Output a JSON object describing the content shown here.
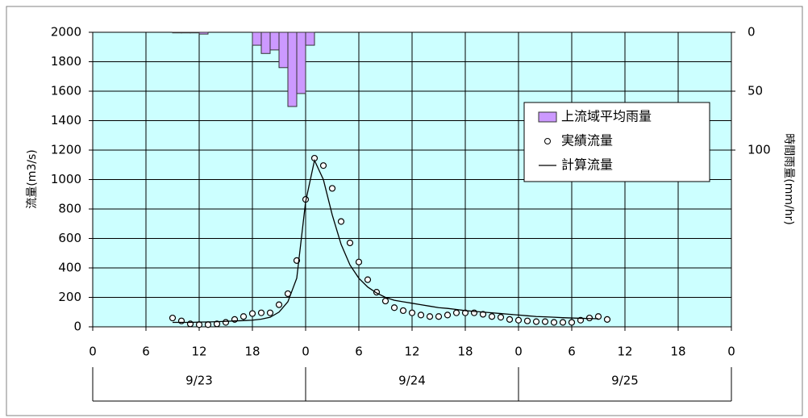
{
  "chart_data": {
    "type": "combo",
    "y_label": "流量(m3/s)",
    "y2_label": "時間雨量(mm/hr)",
    "xlim": [
      0,
      72
    ],
    "xticks": [
      0,
      6,
      12,
      18,
      {
        "value": 24,
        "label": "0"
      },
      {
        "value": 30,
        "label": "6"
      },
      {
        "value": 36,
        "label": "12"
      },
      {
        "value": 42,
        "label": "18"
      },
      {
        "value": 48,
        "label": "0"
      },
      {
        "value": 54,
        "label": "6"
      },
      {
        "value": 60,
        "label": "12"
      },
      {
        "value": 66,
        "label": "18"
      },
      {
        "value": 72,
        "label": "0"
      }
    ],
    "x_groups": [
      {
        "label": "9/23",
        "range": [
          0,
          24
        ]
      },
      {
        "label": "9/24",
        "range": [
          24,
          48
        ]
      },
      {
        "label": "9/25",
        "range": [
          48,
          72
        ]
      }
    ],
    "ylim": [
      0,
      2000
    ],
    "yticks": [
      0,
      200,
      400,
      600,
      800,
      1000,
      1200,
      1400,
      1600,
      1800,
      2000
    ],
    "y2lim": [
      0,
      250
    ],
    "y2_inverted": true,
    "y2ticks": [
      0,
      50,
      100
    ],
    "grid": true,
    "background": "#ccffff",
    "series": [
      {
        "name": "上流域平均雨量",
        "type": "bar",
        "axis": "y2",
        "color": "#cc99ff",
        "x": [
          9,
          10,
          11,
          12,
          18,
          19,
          20,
          21,
          22,
          23,
          24
        ],
        "values": [
          0.5,
          0.5,
          0.5,
          1.5,
          11,
          18,
          15,
          30,
          63,
          52,
          11
        ]
      },
      {
        "name": "実績流量",
        "type": "scatter",
        "color": "#000000",
        "x": [
          9,
          10,
          11,
          12,
          13,
          14,
          15,
          16,
          17,
          18,
          19,
          20,
          21,
          22,
          23,
          24,
          25,
          26,
          27,
          28,
          29,
          30,
          31,
          32,
          33,
          34,
          35,
          36,
          37,
          38,
          39,
          40,
          41,
          42,
          43,
          44,
          45,
          46,
          47,
          48,
          49,
          50,
          51,
          52,
          53,
          54,
          55,
          56,
          57,
          58
        ],
        "values": [
          60,
          40,
          20,
          15,
          15,
          20,
          30,
          50,
          70,
          90,
          95,
          95,
          150,
          225,
          450,
          865,
          1145,
          1095,
          940,
          715,
          570,
          440,
          320,
          235,
          175,
          130,
          110,
          95,
          80,
          70,
          70,
          80,
          95,
          95,
          95,
          85,
          70,
          65,
          50,
          45,
          40,
          35,
          35,
          30,
          30,
          30,
          45,
          60,
          70,
          50
        ]
      },
      {
        "name": "計算流量",
        "type": "line",
        "color": "#000000",
        "x": [
          9,
          10,
          11,
          12,
          13,
          14,
          15,
          16,
          17,
          18,
          19,
          20,
          21,
          22,
          23,
          24,
          25,
          26,
          27,
          28,
          29,
          30,
          31,
          32,
          33,
          34,
          35,
          36,
          37,
          38,
          39,
          40,
          41,
          42,
          43,
          44,
          45,
          46,
          47,
          48,
          49,
          50,
          51,
          52,
          53,
          54,
          55,
          56,
          57
        ],
        "values": [
          30,
          30,
          30,
          32,
          33,
          35,
          37,
          40,
          42,
          45,
          52,
          65,
          100,
          170,
          330,
          850,
          1130,
          1000,
          760,
          560,
          420,
          330,
          270,
          230,
          200,
          180,
          170,
          160,
          150,
          140,
          130,
          125,
          118,
          110,
          105,
          100,
          95,
          90,
          85,
          80,
          75,
          70,
          68,
          65,
          62,
          60,
          58,
          56,
          55
        ]
      }
    ]
  }
}
